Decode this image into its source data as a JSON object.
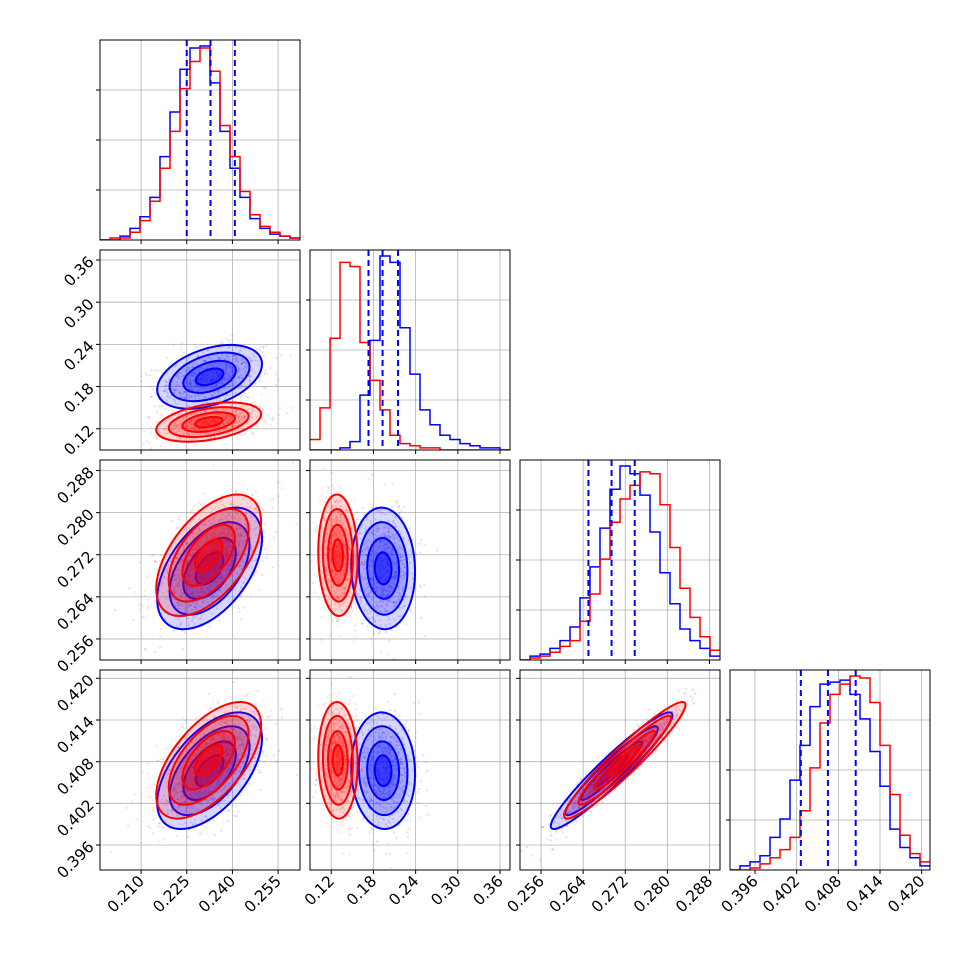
{
  "chart_data": {
    "type": "corner",
    "grid": true,
    "colors": {
      "series_a": "#0000ff",
      "series_b": "#ff0000"
    },
    "parameters": [
      {
        "ticks": [
          "0.210",
          "0.225",
          "0.240",
          "0.255"
        ],
        "tick_values": [
          0.21,
          0.225,
          0.24,
          0.255
        ],
        "range": [
          0.1965,
          0.2622
        ],
        "quantiles": [
          0.225,
          0.2328,
          0.2408
        ]
      },
      {
        "ticks": [
          "0.12",
          "0.18",
          "0.24",
          "0.30",
          "0.36"
        ],
        "tick_values": [
          0.12,
          0.18,
          0.24,
          0.3,
          0.36
        ],
        "range": [
          0.0898,
          0.3742
        ],
        "quantiles": [
          0.173,
          0.193,
          0.215
        ]
      },
      {
        "ticks": [
          "0.256",
          "0.264",
          "0.272",
          "0.280",
          "0.288"
        ],
        "tick_values": [
          0.256,
          0.264,
          0.272,
          0.28,
          0.288
        ],
        "range": [
          0.252,
          0.29
        ],
        "quantiles": [
          0.265,
          0.2694,
          0.2738
        ]
      },
      {
        "ticks": [
          "0.396",
          "0.402",
          "0.408",
          "0.414",
          "0.420"
        ],
        "tick_values": [
          0.396,
          0.402,
          0.408,
          0.414,
          0.42
        ],
        "range": [
          0.3924,
          0.4212
        ],
        "quantiles": [
          0.4026,
          0.4065,
          0.4105
        ]
      }
    ],
    "series": [
      {
        "color": "#0000ff",
        "mean": [
          0.2325,
          0.1938,
          0.2694,
          0.4067
        ],
        "sd": [
          0.0082,
          0.0216,
          0.0055,
          0.004
        ],
        "corr": [
          [
            0,
            1,
            0.4
          ],
          [
            0,
            2,
            0.5
          ],
          [
            0,
            3,
            0.55
          ],
          [
            1,
            2,
            -0.05
          ],
          [
            1,
            3,
            -0.05
          ],
          [
            2,
            3,
            0.95
          ]
        ],
        "hist": [
          [
            0,
            0,
            2,
            6,
            12,
            22,
            43,
            66,
            88,
            99,
            100,
            81,
            56,
            37,
            22,
            11,
            6,
            3,
            2,
            1
          ],
          [
            0,
            0,
            0,
            1,
            4,
            26,
            52,
            92,
            89,
            58,
            36,
            19,
            12,
            7,
            5,
            3,
            2,
            1,
            1,
            0
          ],
          [
            0,
            2,
            3,
            6,
            10,
            17,
            32,
            48,
            68,
            88,
            100,
            96,
            85,
            66,
            45,
            29,
            16,
            10,
            6,
            2
          ],
          [
            0,
            2,
            4,
            7,
            16,
            25,
            44,
            61,
            80,
            91,
            92,
            93,
            86,
            74,
            58,
            41,
            20,
            11,
            6,
            2
          ]
        ]
      },
      {
        "color": "#ff0000",
        "mean": [
          0.2322,
          0.1295,
          0.2719,
          0.4082
        ],
        "sd": [
          0.0082,
          0.0133,
          0.0055,
          0.004
        ],
        "corr": [
          [
            0,
            1,
            0.4
          ],
          [
            0,
            2,
            0.55
          ],
          [
            0,
            3,
            0.6
          ],
          [
            1,
            2,
            -0.05
          ],
          [
            1,
            3,
            -0.05
          ],
          [
            2,
            3,
            0.95
          ]
        ],
        "hist": [
          [
            0,
            1,
            1,
            4,
            10,
            20,
            37,
            56,
            78,
            92,
            99,
            87,
            59,
            43,
            25,
            13,
            7,
            4,
            2,
            1
          ],
          [
            5,
            20,
            53,
            89,
            87,
            51,
            33,
            19,
            7,
            3,
            2,
            1,
            1,
            0,
            0,
            0,
            0,
            0,
            0,
            0
          ],
          [
            0,
            1,
            2,
            4,
            7,
            10,
            20,
            34,
            52,
            71,
            83,
            90,
            97,
            96,
            80,
            58,
            37,
            22,
            12,
            5
          ],
          [
            0,
            0,
            1,
            3,
            6,
            10,
            16,
            29,
            50,
            72,
            86,
            91,
            95,
            94,
            82,
            61,
            37,
            17,
            8,
            4
          ]
        ]
      }
    ]
  }
}
